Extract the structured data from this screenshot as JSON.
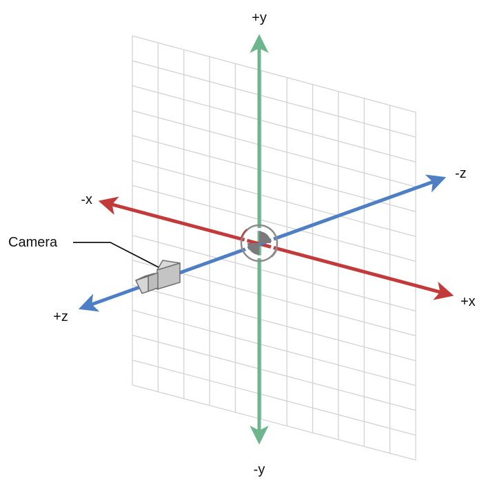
{
  "labels": {
    "y_positive": "+y",
    "y_negative": "-y",
    "x_positive": "+x",
    "x_negative": "-x",
    "z_positive": "+z",
    "z_negative": "-z",
    "camera": "Camera"
  },
  "colors": {
    "x_axis": "#c23a3a",
    "y_axis": "#6db58d",
    "z_axis": "#4e7fc4",
    "grid": "#d2d2d2",
    "camera_body": "#cccccc",
    "camera_outline": "#6f6f6f",
    "origin_rotation": "#808080"
  }
}
